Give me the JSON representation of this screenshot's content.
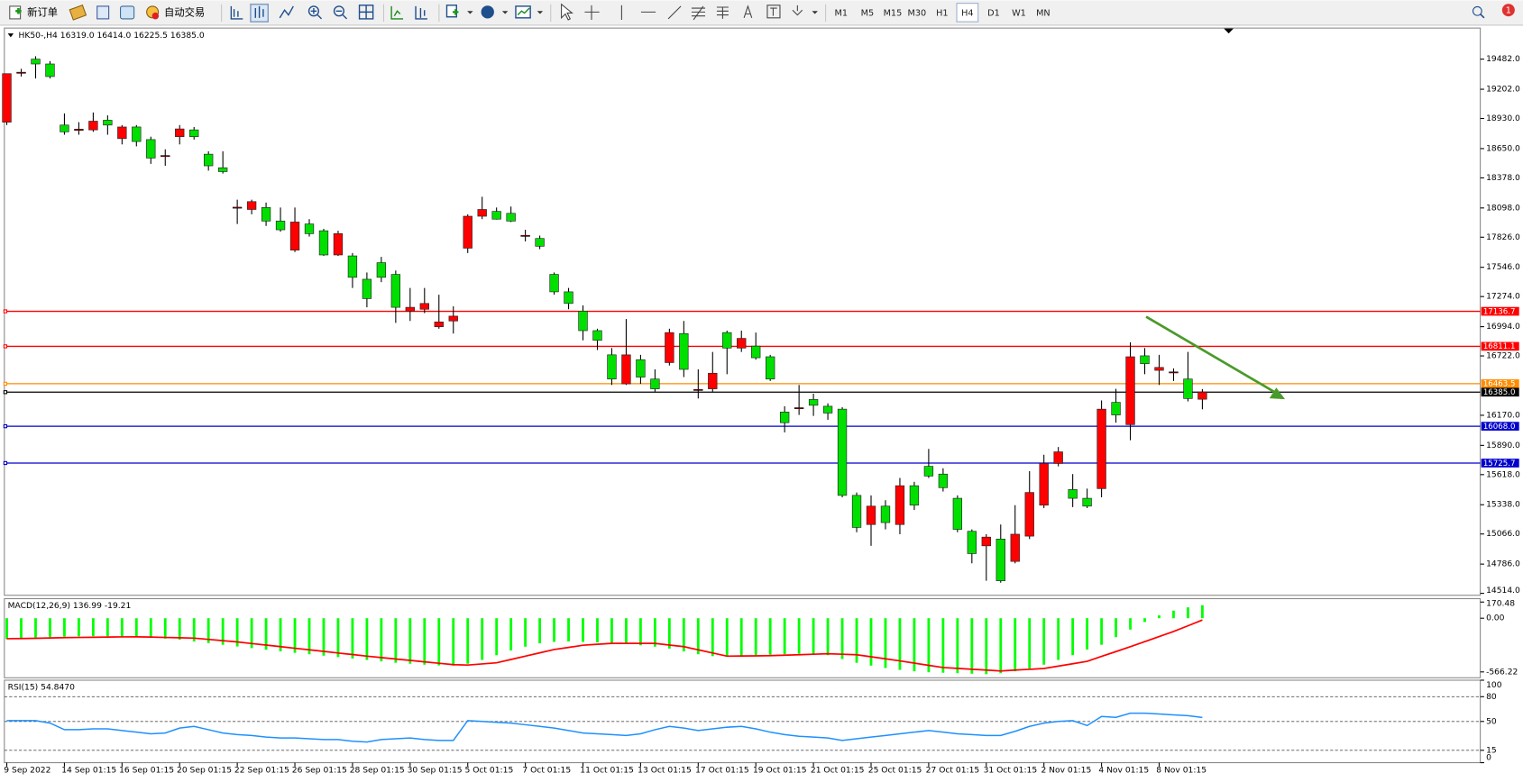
{
  "toolbar": {
    "new_order": "新订单",
    "auto_trading": "自动交易",
    "timeframes": [
      "M1",
      "M5",
      "M15",
      "M30",
      "H1",
      "H4",
      "D1",
      "W1",
      "MN"
    ],
    "badge": "1"
  },
  "header": {
    "symbol": "HK50-,H4",
    "values": [
      "16319.0",
      "16414.0",
      "16225.5",
      "16385.0"
    ]
  },
  "chart_data": [
    {
      "type": "candlestick",
      "categories": [
        "9 Sep 2022",
        null,
        null,
        null,
        "14 Sep 01:15",
        null,
        null,
        null,
        "16 Sep 01:15",
        null,
        null,
        null,
        "20 Sep 01:15",
        null,
        null,
        null,
        "22 Sep 01:15",
        null,
        null,
        null,
        "26 Sep 01:15",
        null,
        null,
        null,
        "28 Sep 01:15",
        null,
        null,
        null,
        "30 Sep 01:15",
        null,
        null,
        null,
        "5 Oct 01:15",
        null,
        null,
        null,
        "7 Oct 01:15",
        null,
        null,
        null,
        "11 Oct 01:15",
        null,
        null,
        null,
        "13 Oct 01:15",
        null,
        null,
        null,
        "17 Oct 01:15",
        null,
        null,
        null,
        "19 Oct 01:15",
        null,
        null,
        null,
        "21 Oct 01:15",
        null,
        null,
        null,
        "25 Oct 01:15",
        null,
        null,
        null,
        "27 Oct 01:15",
        null,
        null,
        null,
        "31 Oct 01:15",
        null,
        null,
        null,
        "2 Nov 01:15",
        null,
        null,
        null,
        "4 Nov 01:15",
        null,
        null,
        null,
        "8 Nov 01:15",
        null,
        null,
        null
      ],
      "open": [
        18896,
        19356,
        19482,
        19437,
        18869,
        18820,
        18824,
        18914,
        18743,
        18851,
        18734,
        18580,
        18761,
        18824,
        18598,
        18472,
        18102,
        18084,
        18102,
        17976,
        17706,
        17949,
        17886,
        17661,
        17652,
        17435,
        17589,
        17480,
        17138,
        17156,
        16993,
        17047,
        17724,
        18021,
        18066,
        18048,
        17840,
        17814,
        17480,
        17318,
        17138,
        16957,
        16732,
        16462,
        16687,
        16507,
        16660,
        16930,
        16407,
        16416,
        16939,
        16795,
        16813,
        16714,
        16200,
        16236,
        16317,
        16254,
        16227,
        15425,
        15154,
        15325,
        15154,
        15515,
        15695,
        15623,
        15398,
        15091,
        14956,
        15019,
        14811,
        15046,
        15334,
        15722,
        15479,
        15398,
        15488,
        16290,
        16083,
        16723,
        16588,
        16570,
        16507,
        16319
      ],
      "high": [
        19347,
        19392,
        19509,
        19464,
        18977,
        18896,
        18986,
        18959,
        18869,
        18869,
        18761,
        18643,
        18869,
        18851,
        18625,
        18625,
        18175,
        18175,
        18148,
        18102,
        18102,
        17994,
        17904,
        17886,
        17679,
        17498,
        17643,
        17516,
        17354,
        17354,
        17291,
        17183,
        18039,
        18202,
        18102,
        18111,
        17895,
        17841,
        17498,
        17354,
        17192,
        16975,
        16795,
        17065,
        16732,
        16597,
        16975,
        17047,
        16597,
        16759,
        16957,
        16957,
        16939,
        16732,
        16254,
        16452,
        16371,
        16281,
        16245,
        15452,
        15425,
        15380,
        15587,
        15551,
        15857,
        15677,
        15425,
        15109,
        15064,
        15154,
        15334,
        15650,
        15803,
        15875,
        15623,
        15488,
        16308,
        16416,
        16849,
        16795,
        16732,
        16606,
        16759,
        16414
      ],
      "low": [
        18869,
        19320,
        19302,
        19302,
        18779,
        18779,
        18806,
        18779,
        18689,
        18671,
        18508,
        18490,
        18689,
        18734,
        18445,
        18418,
        17949,
        18039,
        17931,
        17877,
        17688,
        17832,
        17652,
        17652,
        17354,
        17174,
        17408,
        17029,
        17047,
        17120,
        16975,
        16930,
        17679,
        17994,
        17990,
        17967,
        17787,
        17715,
        17291,
        17156,
        16867,
        16777,
        16452,
        16452,
        16462,
        16389,
        16633,
        16525,
        16326,
        16389,
        16552,
        16759,
        16687,
        16489,
        16011,
        16173,
        16164,
        16128,
        15407,
        15082,
        14956,
        15109,
        15064,
        15289,
        15587,
        15461,
        15082,
        14793,
        14631,
        14613,
        14793,
        15019,
        15307,
        15695,
        15316,
        15307,
        15407,
        16101,
        15938,
        16552,
        16452,
        16489,
        16299,
        16225.5
      ],
      "close": [
        19347,
        19360,
        19437,
        19320,
        18806,
        18830,
        18905,
        18869,
        18851,
        18716,
        18562,
        18585,
        18833,
        18761,
        18490,
        18436,
        18105,
        18157,
        17976,
        17895,
        17967,
        17859,
        17661,
        17859,
        17453,
        17255,
        17453,
        17174,
        17174,
        17210,
        17038,
        17092,
        18021,
        18084,
        17994,
        17976,
        17843,
        17742,
        17318,
        17210,
        16957,
        16867,
        16507,
        16732,
        16525,
        16416,
        16939,
        16597,
        16410,
        16561,
        16795,
        16885,
        16705,
        16507,
        16101,
        16240,
        16263,
        16191,
        15425,
        15127,
        15325,
        15172,
        15515,
        15334,
        15605,
        15497,
        15109,
        14884,
        15037,
        14631,
        15064,
        15452,
        15722,
        15830,
        15398,
        15325,
        16227,
        16173,
        16714,
        16650,
        16615,
        16573,
        16326,
        16385
      ],
      "up_color": "#ff0000",
      "down_color": "#00e000",
      "ylim": [
        14496,
        19771
      ],
      "yticks": [
        {
          "value": 19482,
          "label": "19482.0"
        },
        {
          "value": 19202,
          "label": "19202.0"
        },
        {
          "value": 18930,
          "label": "18930.0"
        },
        {
          "value": 18650,
          "label": "18650.0"
        },
        {
          "value": 18378,
          "label": "18378.0"
        },
        {
          "value": 18098,
          "label": "18098.0"
        },
        {
          "value": 17826,
          "label": "17826.0"
        },
        {
          "value": 17546,
          "label": "17546.0"
        },
        {
          "value": 17274,
          "label": "17274.0"
        },
        {
          "value": 16994,
          "label": "16994.0"
        },
        {
          "value": 16722,
          "label": "16722.0"
        },
        {
          "value": 16170,
          "label": "16170.0"
        },
        {
          "value": 15890,
          "label": "15890.0"
        },
        {
          "value": 15618,
          "label": "15618.0"
        },
        {
          "value": 15338,
          "label": "15338.0"
        },
        {
          "value": 15066,
          "label": "15066.0"
        },
        {
          "value": 14786,
          "label": "14786.0"
        },
        {
          "value": 14514,
          "label": "14514.0"
        }
      ],
      "levels": [
        {
          "value": 17136.7,
          "color": "#ff0000"
        },
        {
          "value": 16811.1,
          "color": "#ff0000"
        },
        {
          "value": 16463.5,
          "color": "#ff8c00"
        },
        {
          "value": 16068,
          "label": "16068.0",
          "color": "#0000cc"
        },
        {
          "value": 15725.7,
          "color": "#0000cc"
        }
      ],
      "current_price": {
        "value": 16385,
        "label": "16385.0",
        "color": "#000000"
      }
    },
    {
      "type": "macd",
      "title": "MACD(12,26,9) 136.99 -19.21",
      "values": [
        -220,
        -212,
        -205,
        -200,
        -195,
        -192,
        -190,
        -190,
        -192,
        -196,
        -205,
        -215,
        -225,
        -245,
        -262,
        -280,
        -298,
        -315,
        -333,
        -350,
        -365,
        -380,
        -395,
        -410,
        -425,
        -440,
        -455,
        -470,
        -480,
        -490,
        -498,
        -500,
        -480,
        -440,
        -390,
        -340,
        -300,
        -265,
        -250,
        -245,
        -250,
        -255,
        -262,
        -270,
        -285,
        -300,
        -320,
        -350,
        -380,
        -400,
        -400,
        -395,
        -390,
        -385,
        -380,
        -375,
        -380,
        -390,
        -430,
        -470,
        -500,
        -525,
        -545,
        -560,
        -570,
        -575,
        -580,
        -585,
        -590,
        -580,
        -560,
        -530,
        -490,
        -440,
        -390,
        -330,
        -280,
        -200,
        -120,
        -40,
        30,
        80,
        115,
        136.99
      ],
      "signal": [
        -216,
        -214,
        -212,
        -208,
        -205,
        -203,
        -201,
        -199,
        -197,
        -196,
        -199,
        -203,
        -206,
        -210,
        -223,
        -237,
        -250,
        -267,
        -283,
        -300,
        -317,
        -333,
        -350,
        -367,
        -383,
        -400,
        -415,
        -430,
        -445,
        -460,
        -475,
        -490,
        -494,
        -482,
        -470,
        -435,
        -400,
        -365,
        -330,
        -308,
        -285,
        -275,
        -265,
        -265,
        -265,
        -265,
        -283,
        -300,
        -333,
        -367,
        -400,
        -398,
        -397,
        -395,
        -390,
        -385,
        -380,
        -375,
        -380,
        -385,
        -407,
        -428,
        -450,
        -473,
        -497,
        -520,
        -529,
        -538,
        -547,
        -556,
        -547,
        -539,
        -530,
        -505,
        -480,
        -455,
        -403,
        -352,
        -300,
        -247,
        -193,
        -140,
        -80,
        -19.21
      ],
      "color": "#00ff00",
      "signal_color": "#ff0000",
      "ylim": [
        -628,
        206
      ],
      "yticks": [
        170.48,
        {
          "value": 0,
          "label": "0.00"
        },
        -566.22
      ]
    },
    {
      "type": "line",
      "title": "RSI(15) 54.8470",
      "values": [
        51,
        51,
        51,
        48,
        40,
        40,
        41,
        41,
        39,
        37,
        35,
        36,
        42,
        44,
        40,
        36,
        34,
        33,
        31,
        30,
        30,
        29,
        28,
        28,
        26,
        25,
        28,
        29,
        30,
        28,
        27,
        27,
        51,
        50,
        49,
        48,
        46,
        44,
        42,
        39,
        36,
        35,
        34,
        33,
        35,
        40,
        44,
        42,
        39,
        41,
        43,
        44,
        41,
        37,
        34,
        32,
        31,
        30,
        27,
        29,
        31,
        33,
        35,
        37,
        39,
        37,
        35,
        34,
        33,
        33,
        38,
        44,
        48,
        50,
        51,
        45,
        56,
        55,
        60,
        60,
        59,
        58,
        57,
        54.847
      ],
      "color": "#1e90ff",
      "ylim": [
        0,
        100
      ],
      "yticks": [
        100,
        80,
        50,
        15,
        0
      ],
      "levels": [
        80,
        50,
        15
      ]
    }
  ]
}
